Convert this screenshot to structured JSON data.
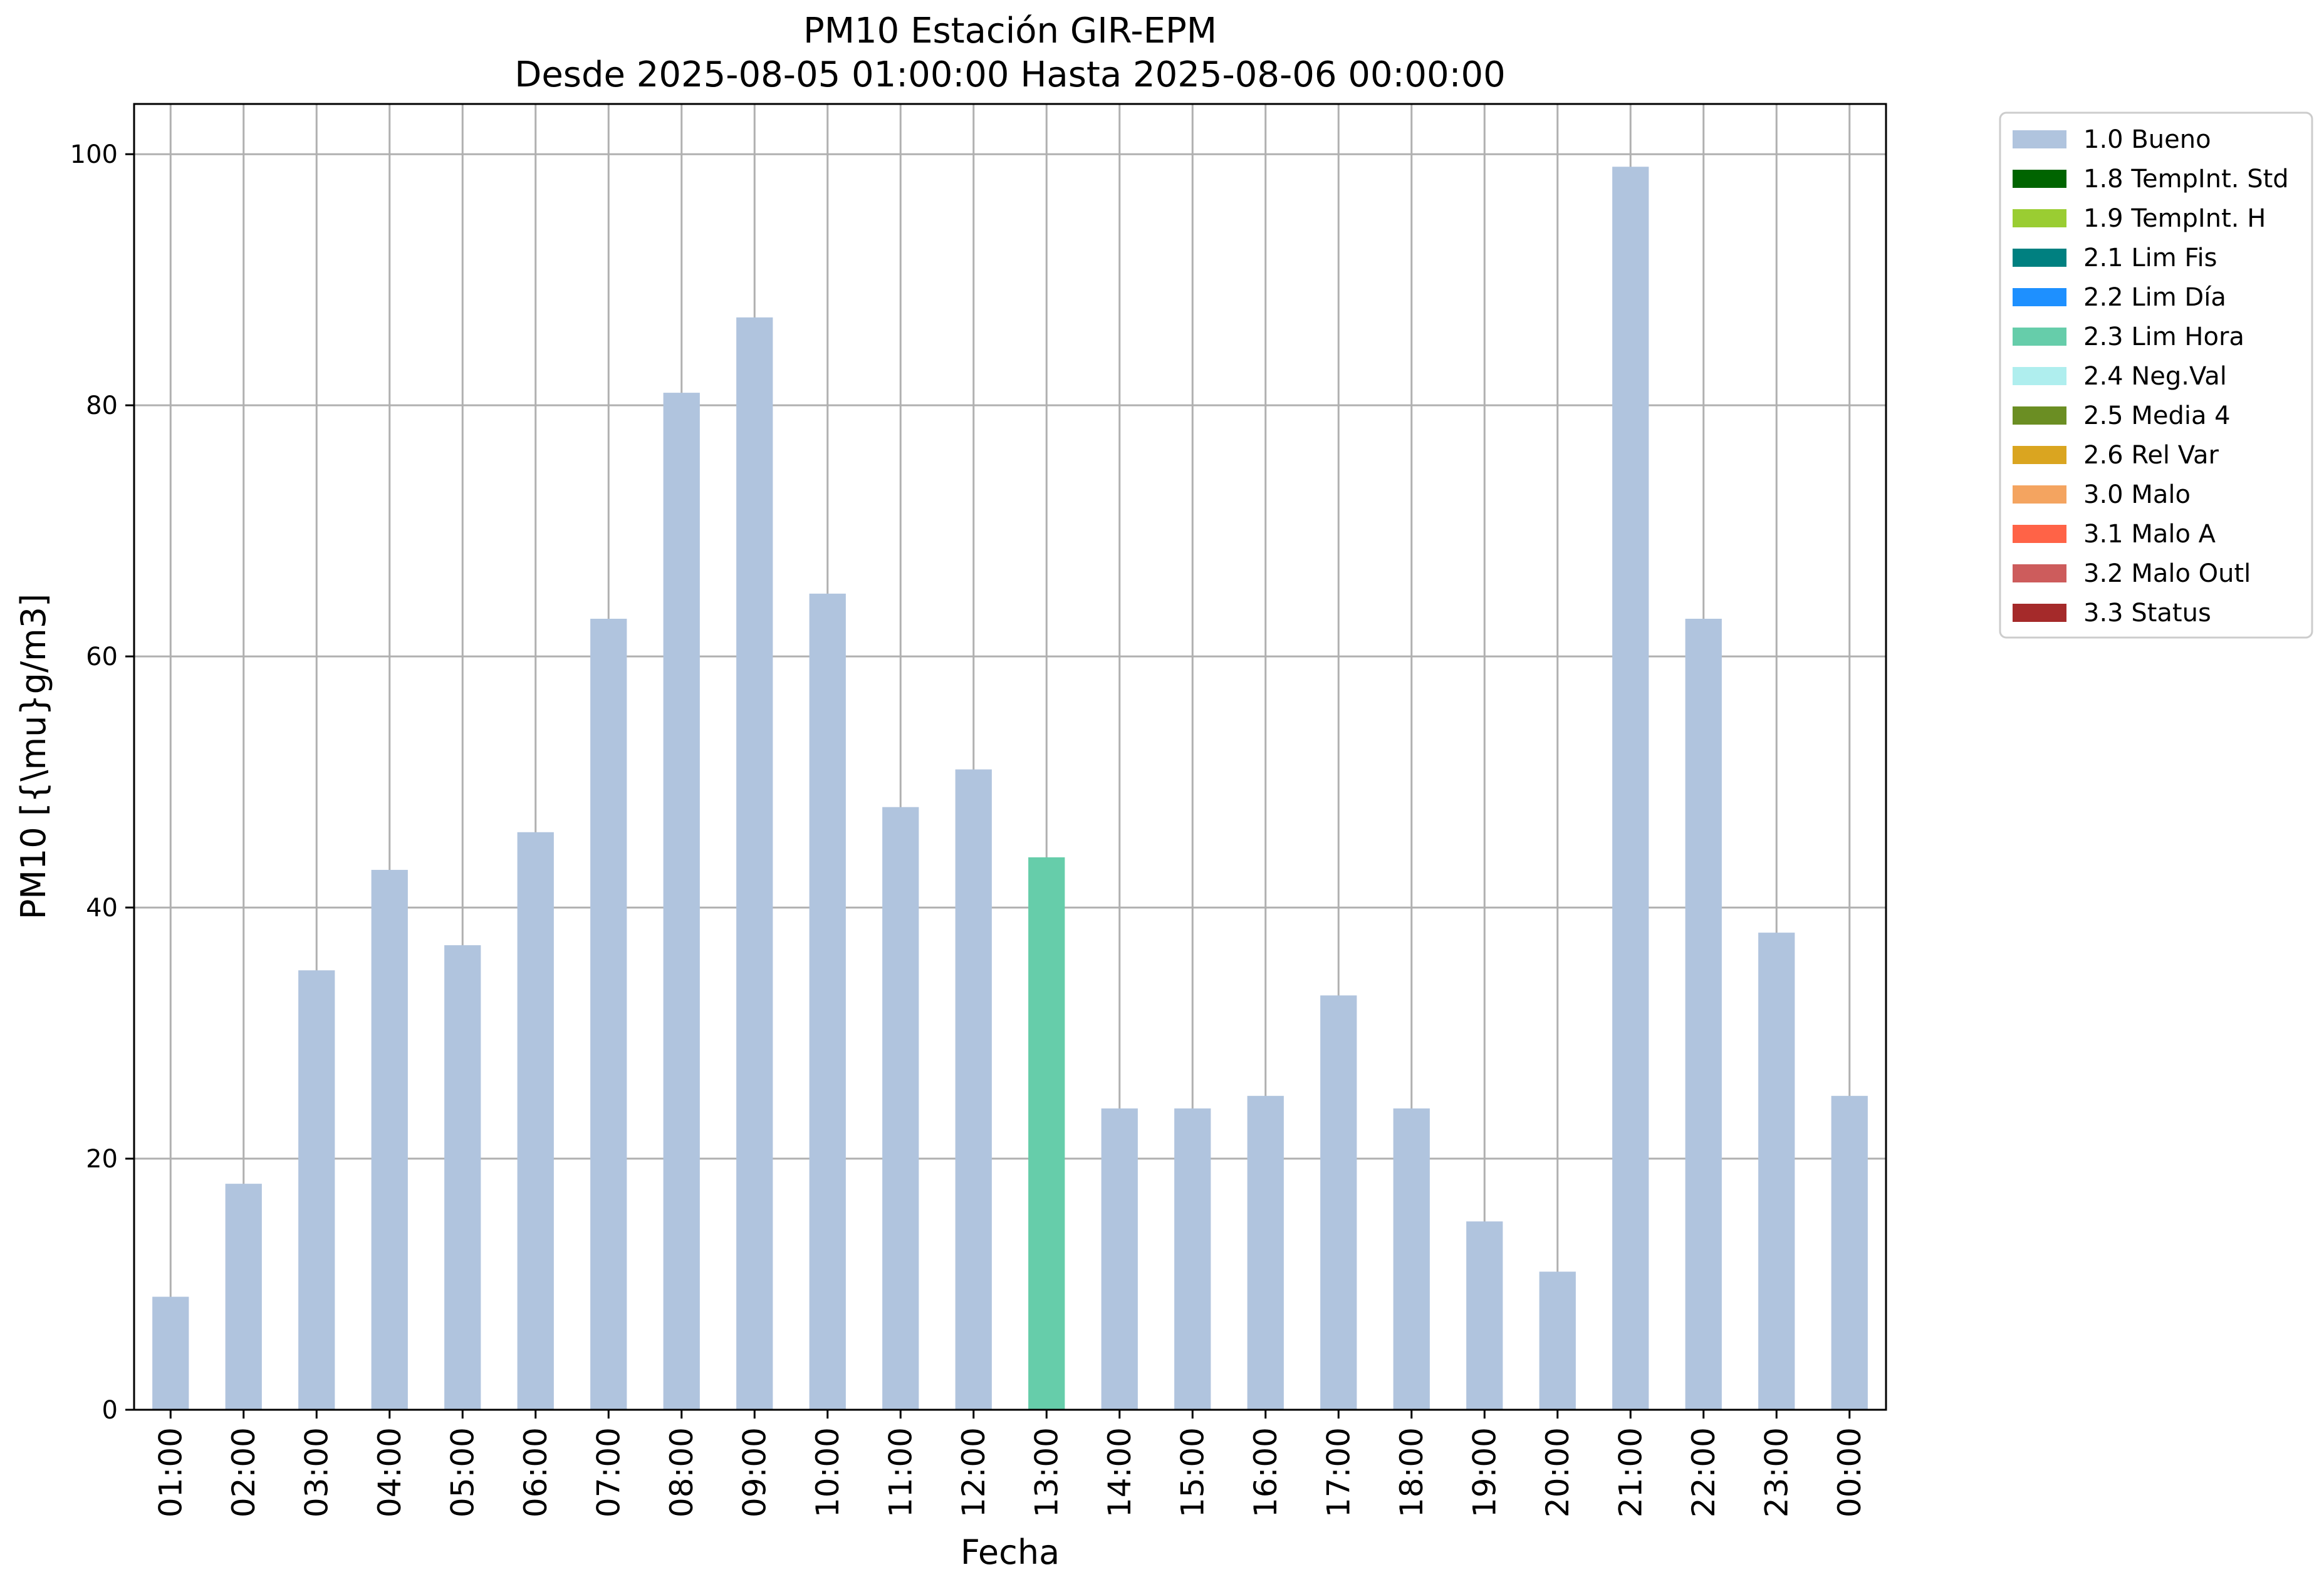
{
  "chart_data": {
    "type": "bar",
    "title": "PM10 Estación GIR-EPM",
    "subtitle": "Desde 2025-08-05 01:00:00 Hasta 2025-08-06 00:00:00",
    "xlabel": "Fecha",
    "ylabel": "PM10 [{\\mu}g/m3]",
    "ylim": [
      0,
      104
    ],
    "yticks": [
      0,
      20,
      40,
      60,
      80,
      100
    ],
    "grid": true,
    "legend_position": "outside-top-right",
    "categories": [
      "01:00",
      "02:00",
      "03:00",
      "04:00",
      "05:00",
      "06:00",
      "07:00",
      "08:00",
      "09:00",
      "10:00",
      "11:00",
      "12:00",
      "13:00",
      "14:00",
      "15:00",
      "16:00",
      "17:00",
      "18:00",
      "19:00",
      "20:00",
      "21:00",
      "22:00",
      "23:00",
      "00:00"
    ],
    "values": [
      9,
      18,
      35,
      43,
      37,
      46,
      63,
      81,
      87,
      65,
      48,
      51,
      44,
      24,
      24,
      25,
      33,
      24,
      15,
      11,
      99,
      63,
      38,
      25
    ],
    "flags": [
      "1.0 Bueno",
      "1.0 Bueno",
      "1.0 Bueno",
      "1.0 Bueno",
      "1.0 Bueno",
      "1.0 Bueno",
      "1.0 Bueno",
      "1.0 Bueno",
      "1.0 Bueno",
      "1.0 Bueno",
      "1.0 Bueno",
      "1.0 Bueno",
      "2.3 Lim Hora",
      "1.0 Bueno",
      "1.0 Bueno",
      "1.0 Bueno",
      "1.0 Bueno",
      "1.0 Bueno",
      "1.0 Bueno",
      "1.0 Bueno",
      "1.0 Bueno",
      "1.0 Bueno",
      "1.0 Bueno",
      "1.0 Bueno"
    ],
    "legend": [
      {
        "label": "1.0 Bueno",
        "color": "#b0c4de"
      },
      {
        "label": "1.8 TempInt. Std",
        "color": "#006400"
      },
      {
        "label": "1.9 TempInt. H",
        "color": "#9acd32"
      },
      {
        "label": "2.1 Lim Fis",
        "color": "#008080"
      },
      {
        "label": "2.2 Lim Día",
        "color": "#1e90ff"
      },
      {
        "label": "2.3 Lim Hora",
        "color": "#66cdaa"
      },
      {
        "label": "2.4 Neg.Val",
        "color": "#afeeee"
      },
      {
        "label": "2.5 Media 4",
        "color": "#6b8e23"
      },
      {
        "label": "2.6 Rel Var",
        "color": "#daa520"
      },
      {
        "label": "3.0 Malo",
        "color": "#f4a460"
      },
      {
        "label": "3.1 Malo A",
        "color": "#ff6347"
      },
      {
        "label": "3.2 Malo Outl",
        "color": "#cd5c5c"
      },
      {
        "label": "3.3 Status",
        "color": "#a52a2a"
      }
    ]
  }
}
